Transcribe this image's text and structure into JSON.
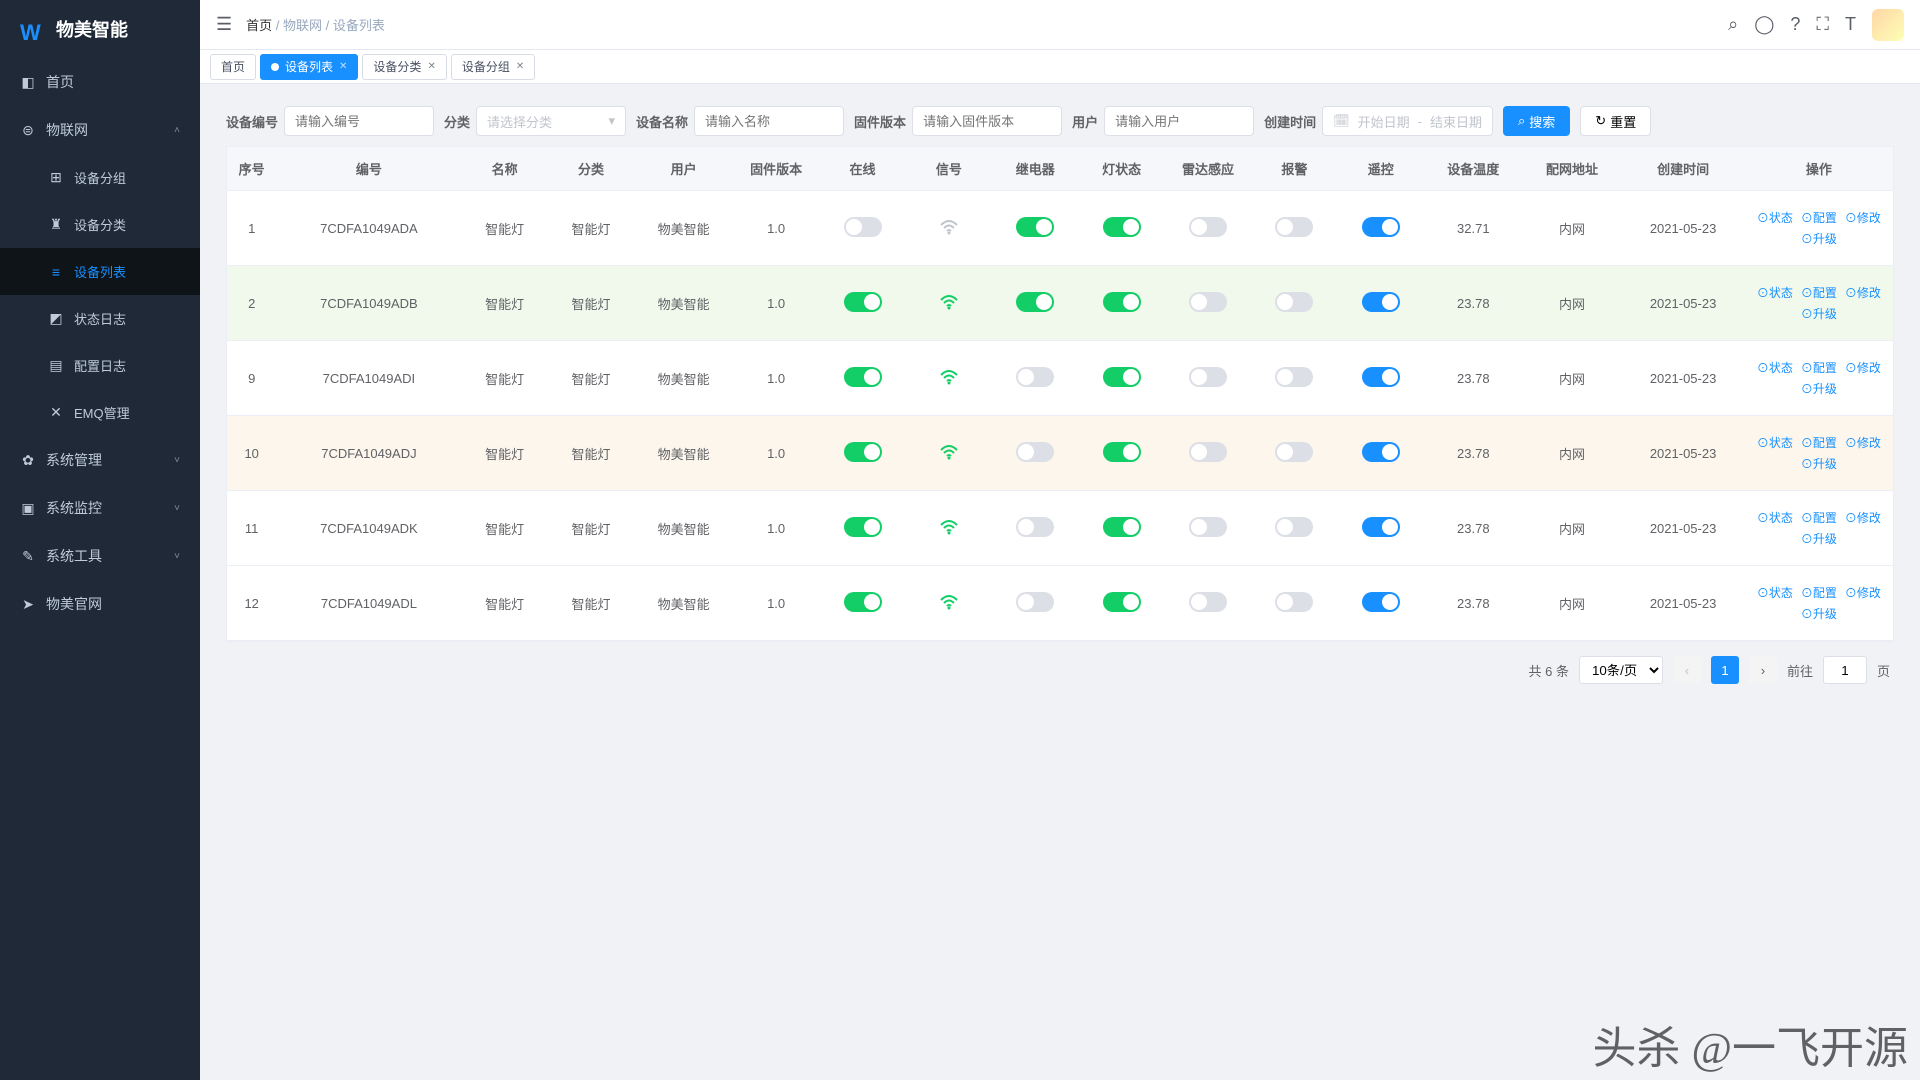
{
  "brand": {
    "name": "物美智能"
  },
  "breadcrumb": [
    "首页",
    "物联网",
    "设备列表"
  ],
  "sidebar": {
    "items": [
      {
        "label": "首页",
        "icon": "◧"
      },
      {
        "label": "物联网",
        "icon": "⊜",
        "open": true,
        "children": [
          {
            "label": "设备分组",
            "icon": "⊞"
          },
          {
            "label": "设备分类",
            "icon": "♜"
          },
          {
            "label": "设备列表",
            "icon": "≡",
            "active": true
          },
          {
            "label": "状态日志",
            "icon": "◩"
          },
          {
            "label": "配置日志",
            "icon": "▤"
          },
          {
            "label": "EMQ管理",
            "icon": "✕"
          }
        ]
      },
      {
        "label": "系统管理",
        "icon": "✿",
        "chev": true
      },
      {
        "label": "系统监控",
        "icon": "▣",
        "chev": true
      },
      {
        "label": "系统工具",
        "icon": "✎",
        "chev": true
      },
      {
        "label": "物美官网",
        "icon": "➤"
      }
    ]
  },
  "tabs": [
    {
      "label": "首页"
    },
    {
      "label": "设备列表",
      "active": true,
      "closable": true,
      "dot": true
    },
    {
      "label": "设备分类",
      "closable": true
    },
    {
      "label": "设备分组",
      "closable": true
    }
  ],
  "filters": {
    "device_no": {
      "label": "设备编号",
      "placeholder": "请输入编号"
    },
    "category": {
      "label": "分类",
      "placeholder": "请选择分类"
    },
    "device_name": {
      "label": "设备名称",
      "placeholder": "请输入名称"
    },
    "firmware": {
      "label": "固件版本",
      "placeholder": "请输入固件版本"
    },
    "user": {
      "label": "用户",
      "placeholder": "请输入用户"
    },
    "created": {
      "label": "创建时间",
      "start": "开始日期",
      "end": "结束日期"
    },
    "search": "搜索",
    "reset": "重置"
  },
  "table": {
    "columns": [
      "序号",
      "编号",
      "名称",
      "分类",
      "用户",
      "固件版本",
      "在线",
      "信号",
      "继电器",
      "灯状态",
      "雷达感应",
      "报警",
      "遥控",
      "设备温度",
      "配网地址",
      "创建时间",
      "操作"
    ],
    "col_widths": [
      "40px",
      "150px",
      "70px",
      "70px",
      "80px",
      "70px",
      "70px",
      "70px",
      "70px",
      "70px",
      "70px",
      "70px",
      "70px",
      "80px",
      "80px",
      "100px",
      "120px"
    ],
    "ops": [
      "状态",
      "配置",
      "修改",
      "升级"
    ],
    "rows": [
      {
        "idx": 1,
        "no": "7CDFA1049ADA",
        "name": "智能灯",
        "cat": "智能灯",
        "user": "物美智能",
        "fw": "1.0",
        "online": false,
        "signal": "weak",
        "relay": true,
        "light": true,
        "radar": false,
        "alarm": false,
        "remote": true,
        "temp": "32.71",
        "net": "内网",
        "created": "2021-05-23",
        "rowClass": ""
      },
      {
        "idx": 2,
        "no": "7CDFA1049ADB",
        "name": "智能灯",
        "cat": "智能灯",
        "user": "物美智能",
        "fw": "1.0",
        "online": true,
        "signal": "strong",
        "relay": true,
        "light": true,
        "radar": false,
        "alarm": false,
        "remote": true,
        "temp": "23.78",
        "net": "内网",
        "created": "2021-05-23",
        "rowClass": "row-green"
      },
      {
        "idx": 9,
        "no": "7CDFA1049ADI",
        "name": "智能灯",
        "cat": "智能灯",
        "user": "物美智能",
        "fw": "1.0",
        "online": true,
        "signal": "strong",
        "relay": false,
        "light": true,
        "radar": false,
        "alarm": false,
        "remote": true,
        "temp": "23.78",
        "net": "内网",
        "created": "2021-05-23",
        "rowClass": ""
      },
      {
        "idx": 10,
        "no": "7CDFA1049ADJ",
        "name": "智能灯",
        "cat": "智能灯",
        "user": "物美智能",
        "fw": "1.0",
        "online": true,
        "signal": "strong",
        "relay": false,
        "light": true,
        "radar": false,
        "alarm": false,
        "remote": true,
        "temp": "23.78",
        "net": "内网",
        "created": "2021-05-23",
        "rowClass": "row-amber"
      },
      {
        "idx": 11,
        "no": "7CDFA1049ADK",
        "name": "智能灯",
        "cat": "智能灯",
        "user": "物美智能",
        "fw": "1.0",
        "online": true,
        "signal": "strong",
        "relay": false,
        "light": true,
        "radar": false,
        "alarm": false,
        "remote": true,
        "temp": "23.78",
        "net": "内网",
        "created": "2021-05-23",
        "rowClass": ""
      },
      {
        "idx": 12,
        "no": "7CDFA1049ADL",
        "name": "智能灯",
        "cat": "智能灯",
        "user": "物美智能",
        "fw": "1.0",
        "online": true,
        "signal": "strong",
        "relay": false,
        "light": true,
        "radar": false,
        "alarm": false,
        "remote": true,
        "temp": "23.78",
        "net": "内网",
        "created": "2021-05-23",
        "rowClass": ""
      }
    ]
  },
  "pagination": {
    "total_label": "共 6 条",
    "page_size": "10条/页",
    "current": "1",
    "goto_label": "前往",
    "goto_value": "1",
    "page_suffix": "页"
  },
  "watermark": "头杀 @一飞开源",
  "colors": {
    "primary": "#1890ff",
    "success": "#13ce66",
    "sidebar": "#1f2937",
    "row_green": "#f0f9ec",
    "row_amber": "#fdf6ec",
    "border": "#ebeef5"
  }
}
